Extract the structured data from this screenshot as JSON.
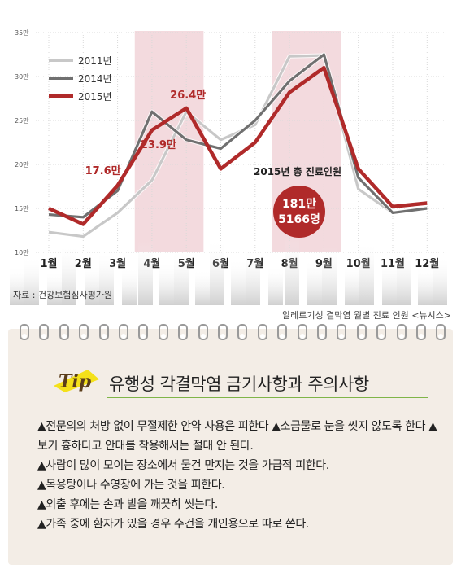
{
  "chart_data": {
    "type": "line",
    "categories": [
      "1월",
      "2월",
      "3월",
      "4월",
      "5월",
      "6월",
      "7월",
      "8월",
      "9월",
      "10월",
      "11월",
      "12월"
    ],
    "y_ticks": [
      "35만",
      "30만",
      "25만",
      "20만",
      "15만",
      "10만"
    ],
    "y_tick_values": [
      35,
      30,
      25,
      20,
      15,
      10
    ],
    "ylim": [
      10,
      35
    ],
    "series": [
      {
        "name": "2011년",
        "color": "#c8c8c8",
        "values": [
          12.3,
          11.8,
          14.5,
          18.2,
          26.0,
          22.8,
          24.5,
          32.3,
          32.4,
          17.2,
          14.5,
          15.1
        ]
      },
      {
        "name": "2014년",
        "color": "#707070",
        "values": [
          14.3,
          14.0,
          17.0,
          26.0,
          22.8,
          21.8,
          25.0,
          29.5,
          32.5,
          18.5,
          14.5,
          15.0
        ]
      },
      {
        "name": "2015년",
        "color": "#b02a2a",
        "values": [
          15.0,
          13.2,
          17.6,
          23.9,
          26.4,
          19.5,
          22.5,
          28.2,
          31.0,
          19.5,
          15.2,
          15.6
        ]
      }
    ],
    "data_labels": [
      {
        "text": "17.6만",
        "index": 2,
        "value": 17.6
      },
      {
        "text": "23.9만",
        "index": 3,
        "value": 23.9
      },
      {
        "text": "26.4만",
        "index": 4,
        "value": 26.4
      }
    ],
    "highlight_months": [
      "4월",
      "5월",
      "8월",
      "9월"
    ],
    "annotation_title": "2015년 총 진료인원",
    "annotation_value_line1": "181만",
    "annotation_value_line2": "5166명",
    "source": "자료 : 건강보험심사평가원",
    "legend_position": "top-left"
  },
  "caption": "알레르기성 결막염 월별 진료 인원 <뉴시스>",
  "tip": {
    "badge": "Tip",
    "title": "유행성 각결막염 금기사항과 주의사항",
    "items": [
      "▲전문의의 처방 없이 무절제한 안약 사용은 피한다 ▲소금물로 눈을 씻지 않도록 한다 ▲ 보기 흉하다고 안대를 착용해서는 절대 안 된다.",
      "▲사람이 많이 모이는 장소에서 물건 만지는 것을 가급적 피한다.",
      "▲목용탕이나 수영장에 가는 것을 피한다.",
      "▲외출 후에는 손과 발을 깨끗히 씻는다.",
      "▲가족 중에 환자가 있을 경우 수건을 개인용으로 따로 쓴다."
    ]
  },
  "colors": {
    "highlight_band": "#f1d3d8",
    "accent_red": "#b02a2a",
    "grid": "#d9d9d9",
    "card_bg": "#f3ede6",
    "badge_yellow": "#f4e11a"
  }
}
